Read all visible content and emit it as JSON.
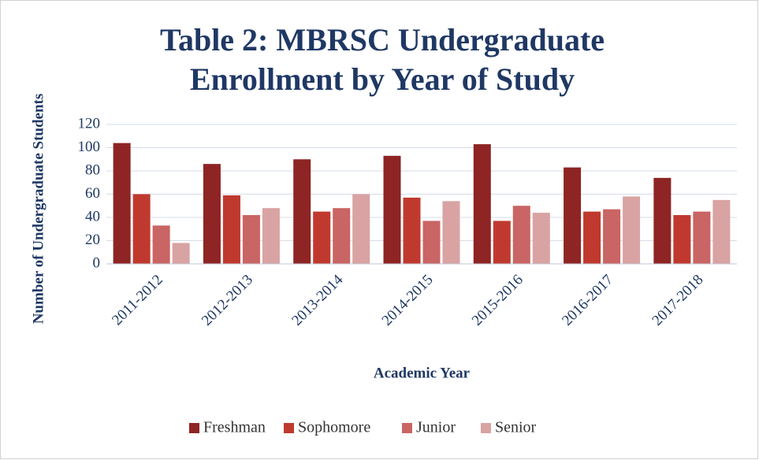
{
  "chart_data": {
    "type": "bar",
    "title": [
      "Table 2: MBRSC Undergraduate",
      "Enrollment by Year of Study"
    ],
    "x_label": "Academic Year",
    "y_label": "Number of Undergraduate Students",
    "categories": [
      "2011-2012",
      "2012-2013",
      "2013-2014",
      "2014-2015",
      "2015-2016",
      "2016-2017",
      "2017-2018"
    ],
    "series": [
      {
        "name": "Freshman",
        "color": "#8e2424",
        "values": [
          104,
          86,
          90,
          93,
          103,
          83,
          74
        ]
      },
      {
        "name": "Sophomore",
        "color": "#c0392f",
        "values": [
          60,
          59,
          45,
          57,
          37,
          45,
          42
        ]
      },
      {
        "name": "Junior",
        "color": "#c96564",
        "values": [
          33,
          42,
          48,
          37,
          50,
          47,
          45
        ]
      },
      {
        "name": "Senior",
        "color": "#d9a3a3",
        "values": [
          18,
          48,
          60,
          54,
          44,
          58,
          55
        ]
      }
    ],
    "ylim": [
      0,
      120
    ],
    "yticks": [
      0,
      20,
      40,
      60,
      80,
      100,
      120
    ],
    "grid": true,
    "legend": "bottom"
  }
}
